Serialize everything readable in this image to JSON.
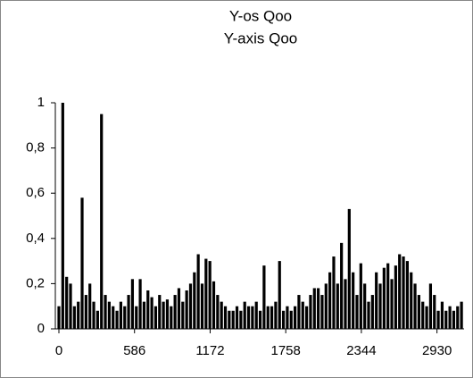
{
  "chart_data": {
    "type": "bar",
    "title": "Y-os Qoo",
    "subtitle": "Y-axis Qoo",
    "x": [
      0,
      30,
      60,
      90,
      120,
      150,
      180,
      210,
      240,
      270,
      300,
      330,
      360,
      390,
      420,
      450,
      480,
      510,
      540,
      570,
      600,
      630,
      660,
      690,
      720,
      750,
      780,
      810,
      840,
      870,
      900,
      930,
      960,
      990,
      1020,
      1050,
      1080,
      1110,
      1140,
      1170,
      1200,
      1230,
      1260,
      1290,
      1320,
      1350,
      1380,
      1410,
      1440,
      1470,
      1500,
      1530,
      1560,
      1590,
      1620,
      1650,
      1680,
      1710,
      1740,
      1770,
      1800,
      1830,
      1860,
      1890,
      1920,
      1950,
      1980,
      2010,
      2040,
      2070,
      2100,
      2130,
      2160,
      2190,
      2220,
      2250,
      2280,
      2310,
      2340,
      2370,
      2400,
      2430,
      2460,
      2490,
      2520,
      2550,
      2580,
      2610,
      2640,
      2670,
      2700,
      2730,
      2760,
      2790,
      2820,
      2850,
      2880,
      2910,
      2940,
      2970,
      3000,
      3030,
      3060,
      3090,
      3120
    ],
    "values": [
      0.1,
      1,
      0.23,
      0.2,
      0.1,
      0.12,
      0.58,
      0.15,
      0.2,
      0.12,
      0.08,
      0.95,
      0.15,
      0.12,
      0.1,
      0.08,
      0.12,
      0.1,
      0.15,
      0.22,
      0.1,
      0.22,
      0.12,
      0.17,
      0.14,
      0.1,
      0.15,
      0.12,
      0.13,
      0.1,
      0.15,
      0.18,
      0.12,
      0.17,
      0.2,
      0.25,
      0.33,
      0.2,
      0.31,
      0.3,
      0.21,
      0.15,
      0.12,
      0.1,
      0.08,
      0.08,
      0.1,
      0.08,
      0.12,
      0.1,
      0.1,
      0.12,
      0.08,
      0.28,
      0.1,
      0.1,
      0.12,
      0.3,
      0.08,
      0.1,
      0.08,
      0.1,
      0.15,
      0.12,
      0.1,
      0.15,
      0.18,
      0.18,
      0.15,
      0.2,
      0.25,
      0.32,
      0.2,
      0.38,
      0.22,
      0.53,
      0.25,
      0.15,
      0.29,
      0.2,
      0.12,
      0.15,
      0.25,
      0.2,
      0.27,
      0.29,
      0.22,
      0.28,
      0.33,
      0.32,
      0.3,
      0.25,
      0.2,
      0.15,
      0.12,
      0.1,
      0.2,
      0.15,
      0.08,
      0.12,
      0.08,
      0.1,
      0.08,
      0.1,
      0.12
    ],
    "color": "#000000",
    "xlim": [
      0,
      3140
    ],
    "xticks": [
      0,
      586,
      1172,
      1758,
      2344,
      2930
    ],
    "ylim": [
      0,
      1
    ],
    "yticks": [
      0,
      {
        "value": 0.2,
        "label": "0,2"
      },
      {
        "value": 0.4,
        "label": "0,4"
      },
      {
        "value": 0.6,
        "label": "0,6"
      },
      {
        "value": 0.8,
        "label": "0,8"
      },
      1
    ],
    "grid": false
  }
}
